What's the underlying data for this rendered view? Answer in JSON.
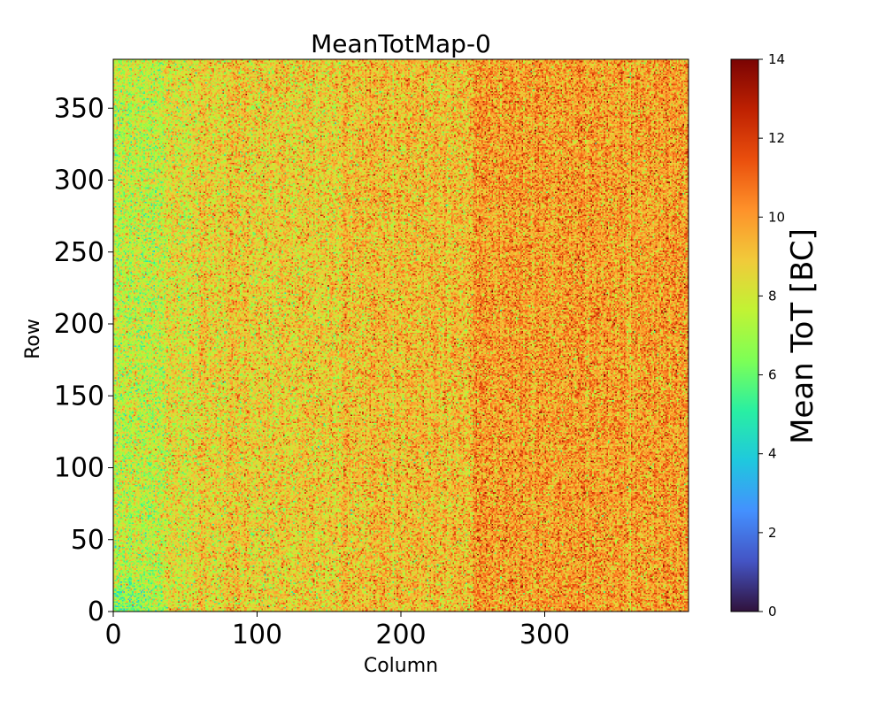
{
  "chart_data": {
    "type": "heatmap",
    "title": "MeanTotMap-0",
    "xlabel": "Column",
    "ylabel": "Row",
    "xlim": [
      0,
      400
    ],
    "ylim": [
      0,
      384
    ],
    "n_columns": 400,
    "n_rows": 384,
    "xticks": [
      0,
      100,
      200,
      300
    ],
    "yticks": [
      0,
      50,
      100,
      150,
      200,
      250,
      300,
      350
    ],
    "colorbar": {
      "label": "Mean ToT [BC]",
      "range": [
        0,
        14
      ],
      "ticks": [
        0,
        2,
        4,
        6,
        8,
        10,
        12,
        14
      ],
      "colormap": "turbo"
    },
    "column_profile": [
      {
        "columns": [
          0,
          35
        ],
        "mean": 7.6
      },
      {
        "columns": [
          35,
          60
        ],
        "mean": 8.3
      },
      {
        "columns": [
          60,
          160
        ],
        "mean": 8.8
      },
      {
        "columns": [
          160,
          250
        ],
        "mean": 9.2
      },
      {
        "columns": [
          250,
          400
        ],
        "mean": 9.9
      }
    ],
    "colors": {
      "turbo_stops": [
        "#30123b",
        "#4454c4",
        "#4490fe",
        "#1fc8de",
        "#29efa2",
        "#7dff56",
        "#c1f334",
        "#f1ca3a",
        "#fe922a",
        "#ea4f0d",
        "#be2102",
        "#7a0403"
      ]
    }
  }
}
